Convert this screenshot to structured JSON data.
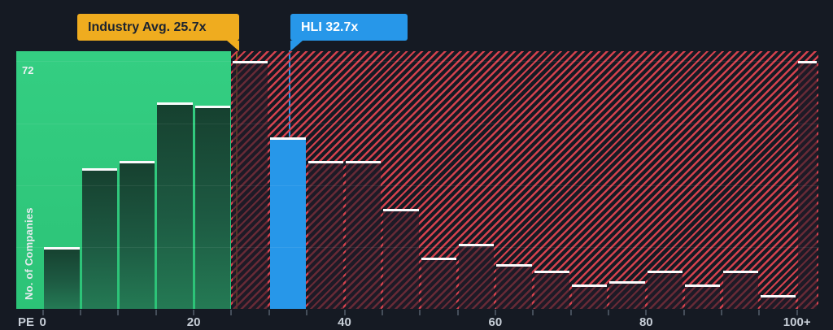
{
  "colors": {
    "background": "#151a23",
    "green_bg_top": "#34ce82",
    "green_bg_bottom": "#2cc377",
    "company_blue": "#2797e9",
    "flag_yellow": "#efac1f",
    "hatch_red": "#d4424e"
  },
  "chart_data": {
    "type": "bar",
    "subtype": "histogram",
    "xlabel": "PE",
    "ylabel": "No. of Companies",
    "y_axis": {
      "max_label": "72",
      "gridline_values": [
        18,
        36,
        54,
        72
      ]
    },
    "x_axis": {
      "tick_labels": [
        {
          "pe": 0,
          "label": "0"
        },
        {
          "pe": 20,
          "label": "20"
        },
        {
          "pe": 40,
          "label": "40"
        },
        {
          "pe": 60,
          "label": "60"
        },
        {
          "pe": 80,
          "label": "80"
        },
        {
          "pe": 100,
          "label": "100+"
        }
      ]
    },
    "bins": [
      {
        "from": 0,
        "to": 5,
        "count": 18,
        "role": "below"
      },
      {
        "from": 5,
        "to": 10,
        "count": 41,
        "role": "below"
      },
      {
        "from": 10,
        "to": 15,
        "count": 43,
        "role": "below"
      },
      {
        "from": 15,
        "to": 20,
        "count": 60,
        "role": "below"
      },
      {
        "from": 20,
        "to": 25,
        "count": 59,
        "role": "below"
      },
      {
        "from": 25,
        "to": 30,
        "count": 72,
        "role": "above"
      },
      {
        "from": 30,
        "to": 35,
        "count": 50,
        "role": "company"
      },
      {
        "from": 35,
        "to": 40,
        "count": 43,
        "role": "above"
      },
      {
        "from": 40,
        "to": 45,
        "count": 43,
        "role": "above"
      },
      {
        "from": 45,
        "to": 50,
        "count": 29,
        "role": "above"
      },
      {
        "from": 50,
        "to": 55,
        "count": 15,
        "role": "above"
      },
      {
        "from": 55,
        "to": 60,
        "count": 19,
        "role": "above"
      },
      {
        "from": 60,
        "to": 65,
        "count": 13,
        "role": "above"
      },
      {
        "from": 65,
        "to": 70,
        "count": 11,
        "role": "above"
      },
      {
        "from": 70,
        "to": 75,
        "count": 7,
        "role": "above"
      },
      {
        "from": 75,
        "to": 80,
        "count": 8,
        "role": "above"
      },
      {
        "from": 80,
        "to": 85,
        "count": 11,
        "role": "above"
      },
      {
        "from": 85,
        "to": 90,
        "count": 7,
        "role": "above"
      },
      {
        "from": 90,
        "to": 95,
        "count": 11,
        "role": "above"
      },
      {
        "from": 95,
        "to": 100,
        "count": 4,
        "role": "above"
      },
      {
        "from": 100,
        "to": null,
        "count": 72,
        "role": "above",
        "label": "100+"
      }
    ],
    "annotations": {
      "industry_avg": {
        "label": "Industry Avg. 25.7x",
        "value": 25.7
      },
      "company": {
        "label": "HLI 32.7x",
        "value": 32.7
      }
    },
    "regions": {
      "below_average_max_pe": 25,
      "above_average_hatched": true
    },
    "legend_position": "none",
    "grid": true
  }
}
